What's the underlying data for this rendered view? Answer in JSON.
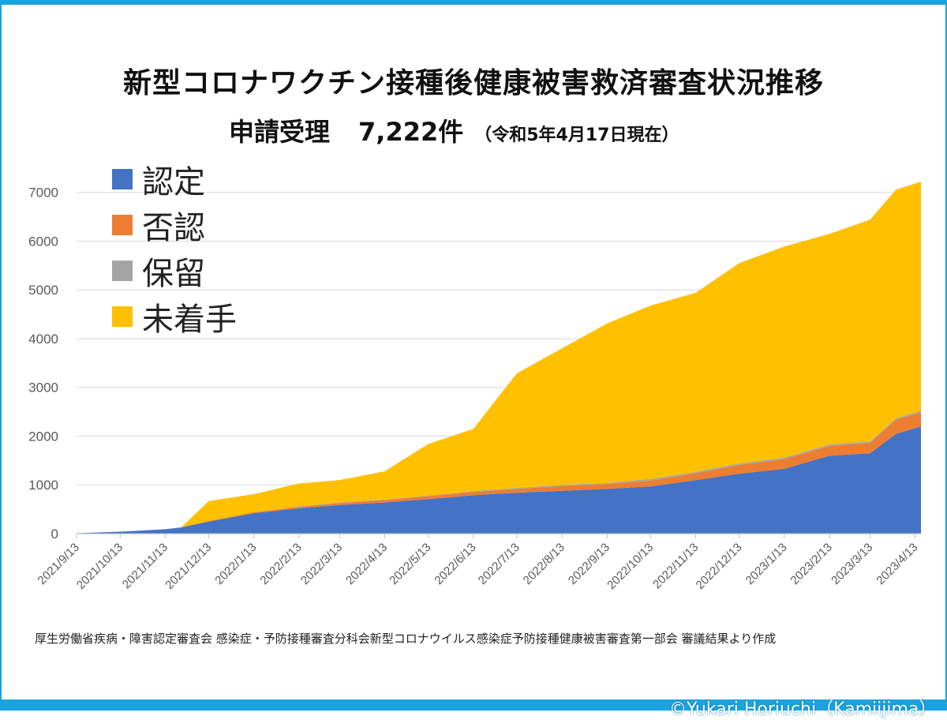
{
  "header": {
    "title": "新型コロナワクチン接種後健康被害救済審査状況推移",
    "subtitle_label": "申請受理",
    "subtitle_count": "7,222件",
    "subtitle_note": "（令和5年4月17日現在）"
  },
  "colors": {
    "nintei": "#4472c4",
    "hinin": "#ed7d31",
    "horyu": "#a5a5a5",
    "michakushu": "#ffc000",
    "frame": "#1aa3de",
    "grid": "#d9d9d9",
    "axis_text": "#595959"
  },
  "source_note": "厚生労働省疾病・障害認定審査会 感染症・予防接種審査分科会新型コロナウイルス感染症予防接種健康被害審査第一部会 審議結果より作成",
  "credit": "©Yukari Horiuchi（Kamiijima）",
  "chart_data": {
    "type": "area",
    "stacked": true,
    "title": "新型コロナワクチン接種後健康被害救済審査状況推移",
    "subtitle": "申請受理 7,222件（令和5年4月17日現在）",
    "xlabel": "",
    "ylabel": "",
    "ylim": [
      0,
      7000
    ],
    "yticks": [
      0,
      1000,
      2000,
      3000,
      4000,
      5000,
      6000,
      7000
    ],
    "grid": true,
    "legend_position": "top-left",
    "x_range": [
      "2021/9/13",
      "2023/4/17"
    ],
    "x_ticks": [
      "2021/9/13",
      "2021/10/13",
      "2021/11/13",
      "2021/12/13",
      "2022/1/13",
      "2022/2/13",
      "2022/3/13",
      "2022/4/13",
      "2022/5/13",
      "2022/6/13",
      "2022/7/13",
      "2022/8/13",
      "2022/9/13",
      "2022/10/13",
      "2022/11/13",
      "2022/12/13",
      "2023/1/13",
      "2023/2/13",
      "2023/3/13",
      "2023/4/13"
    ],
    "x": [
      "2021/9/13",
      "2021/10/13",
      "2021/11/13",
      "2021/11/24",
      "2021/12/13",
      "2022/1/13",
      "2022/2/13",
      "2022/3/13",
      "2022/4/13",
      "2022/5/13",
      "2022/6/13",
      "2022/7/13",
      "2022/8/13",
      "2022/9/13",
      "2022/10/13",
      "2022/11/13",
      "2022/12/13",
      "2023/1/13",
      "2023/2/13",
      "2023/3/13",
      "2023/3/31",
      "2023/4/17"
    ],
    "series": [
      {
        "name": "認定",
        "values": [
          10,
          40,
          90,
          130,
          250,
          420,
          520,
          590,
          640,
          710,
          790,
          840,
          880,
          920,
          970,
          1100,
          1230,
          1330,
          1600,
          1650,
          2050,
          2200
        ]
      },
      {
        "name": "否認",
        "values": [
          0,
          0,
          0,
          0,
          10,
          20,
          30,
          40,
          50,
          60,
          70,
          80,
          100,
          100,
          120,
          140,
          180,
          200,
          200,
          210,
          290,
          290
        ]
      },
      {
        "name": "保留",
        "values": [
          0,
          0,
          0,
          0,
          0,
          0,
          10,
          10,
          10,
          10,
          10,
          20,
          20,
          20,
          30,
          30,
          30,
          30,
          30,
          30,
          30,
          30
        ]
      },
      {
        "name": "未着手",
        "values": [
          0,
          0,
          0,
          0,
          410,
          370,
          470,
          460,
          580,
          1060,
          1280,
          2350,
          2800,
          3270,
          3560,
          3670,
          4110,
          4330,
          4320,
          4550,
          4690,
          4700
        ]
      }
    ],
    "totals_note": "Stacked total reaches 7,222 on 2023/4/17"
  }
}
